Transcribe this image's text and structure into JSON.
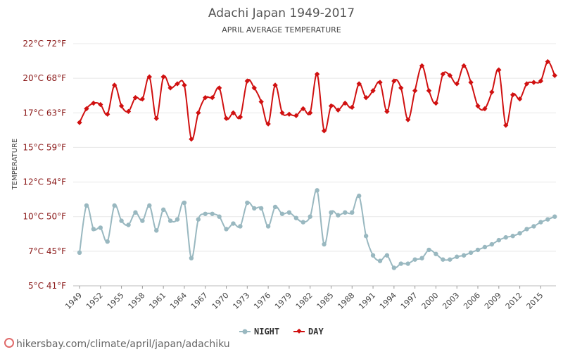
{
  "chart_data": {
    "type": "line",
    "title": "Adachi Japan 1949-2017",
    "subtitle": "APRIL AVERAGE TEMPERATURE",
    "ylabel": "TEMPERATURE",
    "y_ticks": [
      "5°C 41°F",
      "7°C 45°F",
      "10°C 50°F",
      "12°C 54°F",
      "15°C 59°F",
      "17°C 63°F",
      "20°C 68°F",
      "22°C 72°F"
    ],
    "y_tick_values": [
      5,
      7.5,
      10,
      12.5,
      15,
      17.5,
      20,
      22.5
    ],
    "ylim": [
      5,
      22.5
    ],
    "x_range": [
      1949,
      2017
    ],
    "x_tick_labels": [
      "1949",
      "1952",
      "1955",
      "1958",
      "1961",
      "1964",
      "1967",
      "1970",
      "1973",
      "1976",
      "1979",
      "1982",
      "1985",
      "1988",
      "1991",
      "1994",
      "1997",
      "2000",
      "2003",
      "2006",
      "2009",
      "2012",
      "2015"
    ],
    "grid": "horizontal",
    "legend_position": "bottom",
    "x": [
      1949,
      1950,
      1951,
      1952,
      1953,
      1954,
      1955,
      1956,
      1957,
      1958,
      1959,
      1960,
      1961,
      1962,
      1963,
      1964,
      1965,
      1966,
      1967,
      1968,
      1969,
      1970,
      1971,
      1972,
      1973,
      1974,
      1975,
      1976,
      1977,
      1978,
      1979,
      1980,
      1981,
      1982,
      1983,
      1984,
      1985,
      1986,
      1987,
      1988,
      1989,
      1990,
      1991,
      1992,
      1993,
      1994,
      1995,
      1996,
      1997,
      1998,
      1999,
      2000,
      2001,
      2002,
      2003,
      2004,
      2005,
      2006,
      2007,
      2008,
      2009,
      2010,
      2011,
      2012,
      2013,
      2014,
      2015,
      2016,
      2017
    ],
    "series": [
      {
        "name": "NIGHT",
        "color": "#99b8c0",
        "values": [
          7.4,
          10.8,
          9.1,
          9.2,
          8.2,
          10.8,
          9.7,
          9.4,
          10.3,
          9.7,
          10.8,
          9.0,
          10.5,
          9.7,
          9.8,
          11.0,
          7.0,
          9.8,
          10.2,
          10.2,
          10.0,
          9.1,
          9.5,
          9.3,
          11.0,
          10.6,
          10.6,
          9.3,
          10.7,
          10.2,
          10.3,
          9.9,
          9.6,
          10.0,
          11.9,
          8.0,
          10.3,
          10.1,
          10.3,
          10.3,
          11.5,
          8.6,
          7.2,
          6.8,
          7.2,
          6.3,
          6.6,
          6.6,
          6.9,
          7.0,
          7.6,
          7.3,
          6.9,
          6.9,
          7.1,
          7.2,
          7.4,
          7.6,
          7.8,
          8.0,
          8.3,
          8.5,
          8.6,
          8.8,
          9.1,
          9.3,
          9.6,
          9.8,
          10.0
        ]
      },
      {
        "name": "DAY",
        "color": "#d01010",
        "values": [
          16.8,
          17.8,
          18.2,
          18.1,
          17.4,
          19.5,
          18.0,
          17.6,
          18.6,
          18.5,
          20.1,
          17.1,
          20.1,
          19.3,
          19.6,
          19.5,
          15.6,
          17.5,
          18.6,
          18.6,
          19.3,
          17.1,
          17.5,
          17.2,
          19.8,
          19.3,
          18.3,
          16.7,
          19.5,
          17.5,
          17.4,
          17.3,
          17.8,
          17.5,
          20.3,
          16.2,
          18.0,
          17.7,
          18.2,
          17.9,
          19.6,
          18.6,
          19.1,
          19.7,
          17.6,
          19.8,
          19.3,
          17.0,
          19.1,
          20.9,
          19.1,
          18.2,
          20.3,
          20.2,
          19.6,
          20.9,
          19.7,
          18.0,
          17.8,
          19.0,
          20.6,
          16.6,
          18.8,
          18.5,
          19.6,
          19.7,
          19.8,
          21.2,
          20.2
        ]
      }
    ]
  },
  "footer": {
    "url": "hikersbay.com/climate/april/japan/adachiku"
  }
}
